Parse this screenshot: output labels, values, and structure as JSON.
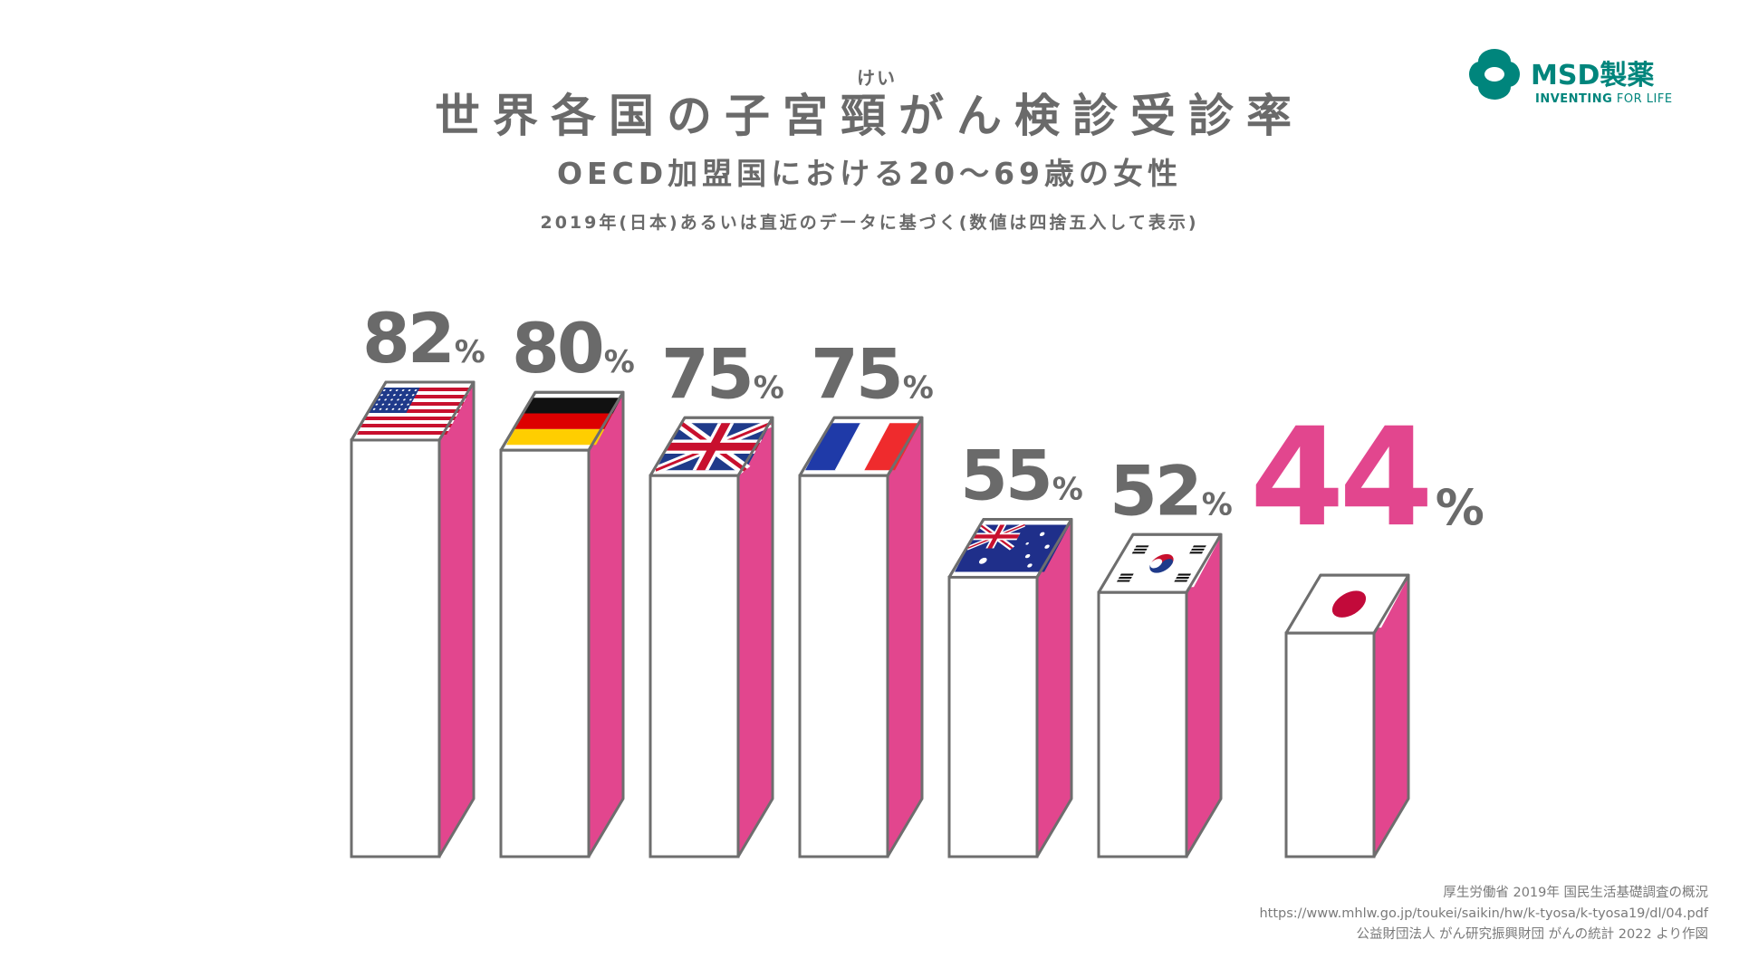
{
  "header": {
    "title": "世界各国の子宮頸がん検診受診率",
    "title_ruby": "けい",
    "subtitle": "OECD加盟国における20～69歳の女性",
    "note": "2019年(日本)あるいは直近のデータに基づく(数値は四捨五入して表示)"
  },
  "logo": {
    "name": "MSD製薬",
    "tagline_bold": "INVENTING",
    "tagline_rest": " FOR LIFE"
  },
  "source": {
    "line1": "厚生労働省 2019年 国民生活基礎調査の概況",
    "line2": "https://www.mhlw.go.jp/toukei/saikin/hw/k-tyosa/k-tyosa19/dl/04.pdf",
    "line3": "公益財団法人 がん研究振興財団 がんの統計 2022 より作図"
  },
  "colors": {
    "side": "#e2468e",
    "highlight": "#e2468e",
    "text": "#6a6a6a",
    "outline": "#6e6e6e",
    "brand": "#00857c"
  },
  "chart_data": {
    "type": "bar",
    "categories": [
      "アメリカ",
      "ドイツ",
      "イギリス",
      "フランス",
      "オーストラリア",
      "韓国",
      "日本"
    ],
    "flags": [
      "us",
      "de",
      "gb",
      "fr",
      "au",
      "kr",
      "jp"
    ],
    "values": [
      82,
      80,
      75,
      75,
      55,
      52,
      44
    ],
    "value_labels": [
      "82",
      "80",
      "75",
      "75",
      "55",
      "52",
      "44"
    ],
    "unit": "%",
    "highlight_index": 6,
    "ylim": [
      0,
      100
    ]
  }
}
